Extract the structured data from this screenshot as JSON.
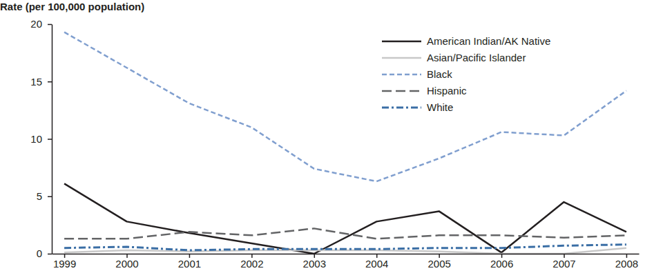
{
  "chart_data": {
    "type": "line",
    "y_label": "Rate (per 100,000 population)",
    "categories": [
      "1999",
      "2000",
      "2001",
      "2002",
      "2003",
      "2004",
      "2005",
      "2006",
      "2007",
      "2008"
    ],
    "ylim": [
      0,
      20
    ],
    "yticks": [
      0,
      5,
      10,
      15,
      20
    ],
    "grid": false,
    "legend": "top-right",
    "series": [
      {
        "name": "American Indian/AK Native",
        "color": "#231f20",
        "line_style": "solid",
        "values": [
          6.1,
          2.8,
          1.8,
          0.9,
          0.0,
          2.8,
          3.7,
          0.1,
          4.5,
          1.9
        ]
      },
      {
        "name": "Asian/Pacific Islander",
        "color": "#c8c8c8",
        "line_style": "solid",
        "values": [
          0.1,
          0.3,
          0.2,
          0.3,
          0.3,
          0.3,
          0.2,
          0.0,
          0.0,
          0.5
        ]
      },
      {
        "name": "Black",
        "color": "#809fcf",
        "line_style": "dashed",
        "values": [
          19.3,
          16.2,
          13.1,
          11.0,
          7.4,
          6.3,
          8.3,
          10.6,
          10.3,
          14.2
        ]
      },
      {
        "name": "Hispanic",
        "color": "#636466",
        "line_style": "long_dashed",
        "values": [
          1.3,
          1.3,
          1.9,
          1.6,
          2.2,
          1.3,
          1.6,
          1.6,
          1.4,
          1.6
        ]
      },
      {
        "name": "White",
        "color": "#3a6ea5",
        "line_style": "dash_dot",
        "values": [
          0.5,
          0.6,
          0.3,
          0.4,
          0.4,
          0.4,
          0.5,
          0.5,
          0.7,
          0.8
        ]
      }
    ]
  }
}
